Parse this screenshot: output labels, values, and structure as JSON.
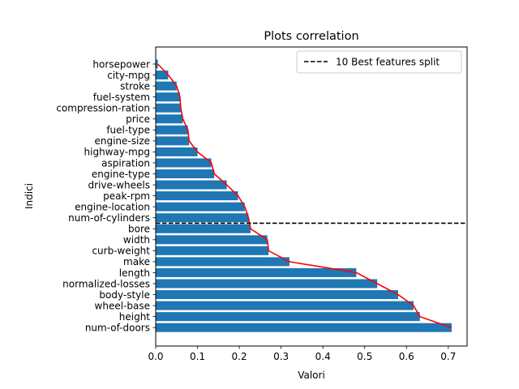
{
  "chart_data": {
    "type": "bar",
    "orientation": "horizontal",
    "title": "Plots correlation",
    "xlabel": "Valori",
    "ylabel": "Indici",
    "xlim": [
      0,
      0.745
    ],
    "xticks": [
      "0.0",
      "0.1",
      "0.2",
      "0.3",
      "0.4",
      "0.5",
      "0.6",
      "0.7"
    ],
    "categories": [
      "horsepower",
      "city-mpg",
      "stroke",
      "fuel-system",
      "compression-ration",
      "price",
      "fuel-type",
      "engine-size",
      "highway-mpg",
      "aspiration",
      "engine-type",
      "drive-wheels",
      "peak-rpm",
      "engine-location",
      "num-of-cylinders",
      "bore",
      "width",
      "curb-weight",
      "make",
      "length",
      "normalized-losses",
      "body-style",
      "wheel-base",
      "height",
      "num-of-doors"
    ],
    "values": [
      0.005,
      0.03,
      0.05,
      0.058,
      0.06,
      0.065,
      0.077,
      0.08,
      0.1,
      0.133,
      0.14,
      0.17,
      0.197,
      0.213,
      0.222,
      0.227,
      0.267,
      0.27,
      0.32,
      0.48,
      0.53,
      0.58,
      0.617,
      0.632,
      0.708
    ],
    "bar_color": "#1f77b4",
    "line_color": "#ff0000",
    "split": {
      "after_category": "num-of-cylinders",
      "label": "10 Best features split",
      "color": "#000000",
      "style": "dashed"
    },
    "legend_position": "top-right",
    "grid": false
  }
}
